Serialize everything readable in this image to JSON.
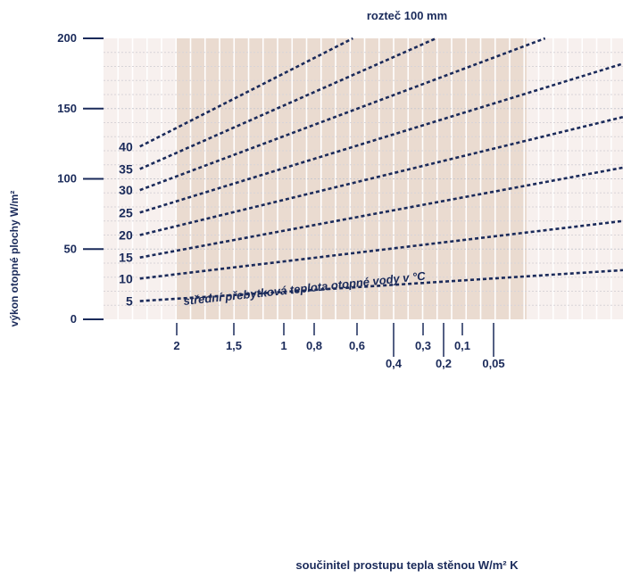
{
  "chart_data": {
    "type": "line",
    "title": "rozteč 100 mm",
    "xlabel": "součinitel prostupu tepla stěnou W/m² K",
    "ylabel": "výkon otopné plochy  W/m²",
    "annotation": "střední přebytková teplota otopné vody v °C",
    "ylim": [
      0,
      200
    ],
    "y_ticks": [
      "0",
      "50",
      "100",
      "150",
      "200"
    ],
    "x_ticks_top": [
      "2",
      "1,5",
      "1",
      "0,8",
      "0,6",
      "0,3",
      "0,1"
    ],
    "x_ticks_bottom": [
      "0,4",
      "0,2",
      "0,05"
    ],
    "grid": true,
    "series": [
      {
        "name": "5",
        "start": [
          0.07,
          13
        ],
        "end": [
          1.0,
          35
        ]
      },
      {
        "name": "10",
        "start": [
          0.07,
          29
        ],
        "end": [
          1.0,
          70
        ]
      },
      {
        "name": "15",
        "start": [
          0.07,
          44
        ],
        "end": [
          1.0,
          108
        ]
      },
      {
        "name": "20",
        "start": [
          0.07,
          60
        ],
        "end": [
          1.0,
          144
        ]
      },
      {
        "name": "25",
        "start": [
          0.07,
          76
        ],
        "end": [
          1.0,
          182
        ]
      },
      {
        "name": "30",
        "start": [
          0.07,
          92
        ],
        "end": [
          0.85,
          200
        ]
      },
      {
        "name": "35",
        "start": [
          0.07,
          107
        ],
        "end": [
          0.64,
          200
        ]
      },
      {
        "name": "40",
        "start": [
          0.07,
          123
        ],
        "end": [
          0.48,
          200
        ]
      }
    ],
    "colors": {
      "line": "#1a2a5a",
      "text": "#1a2a5a",
      "shade": "#eadbd0",
      "panel": "#f7f0ee",
      "grid": "#c9c9d0"
    }
  }
}
